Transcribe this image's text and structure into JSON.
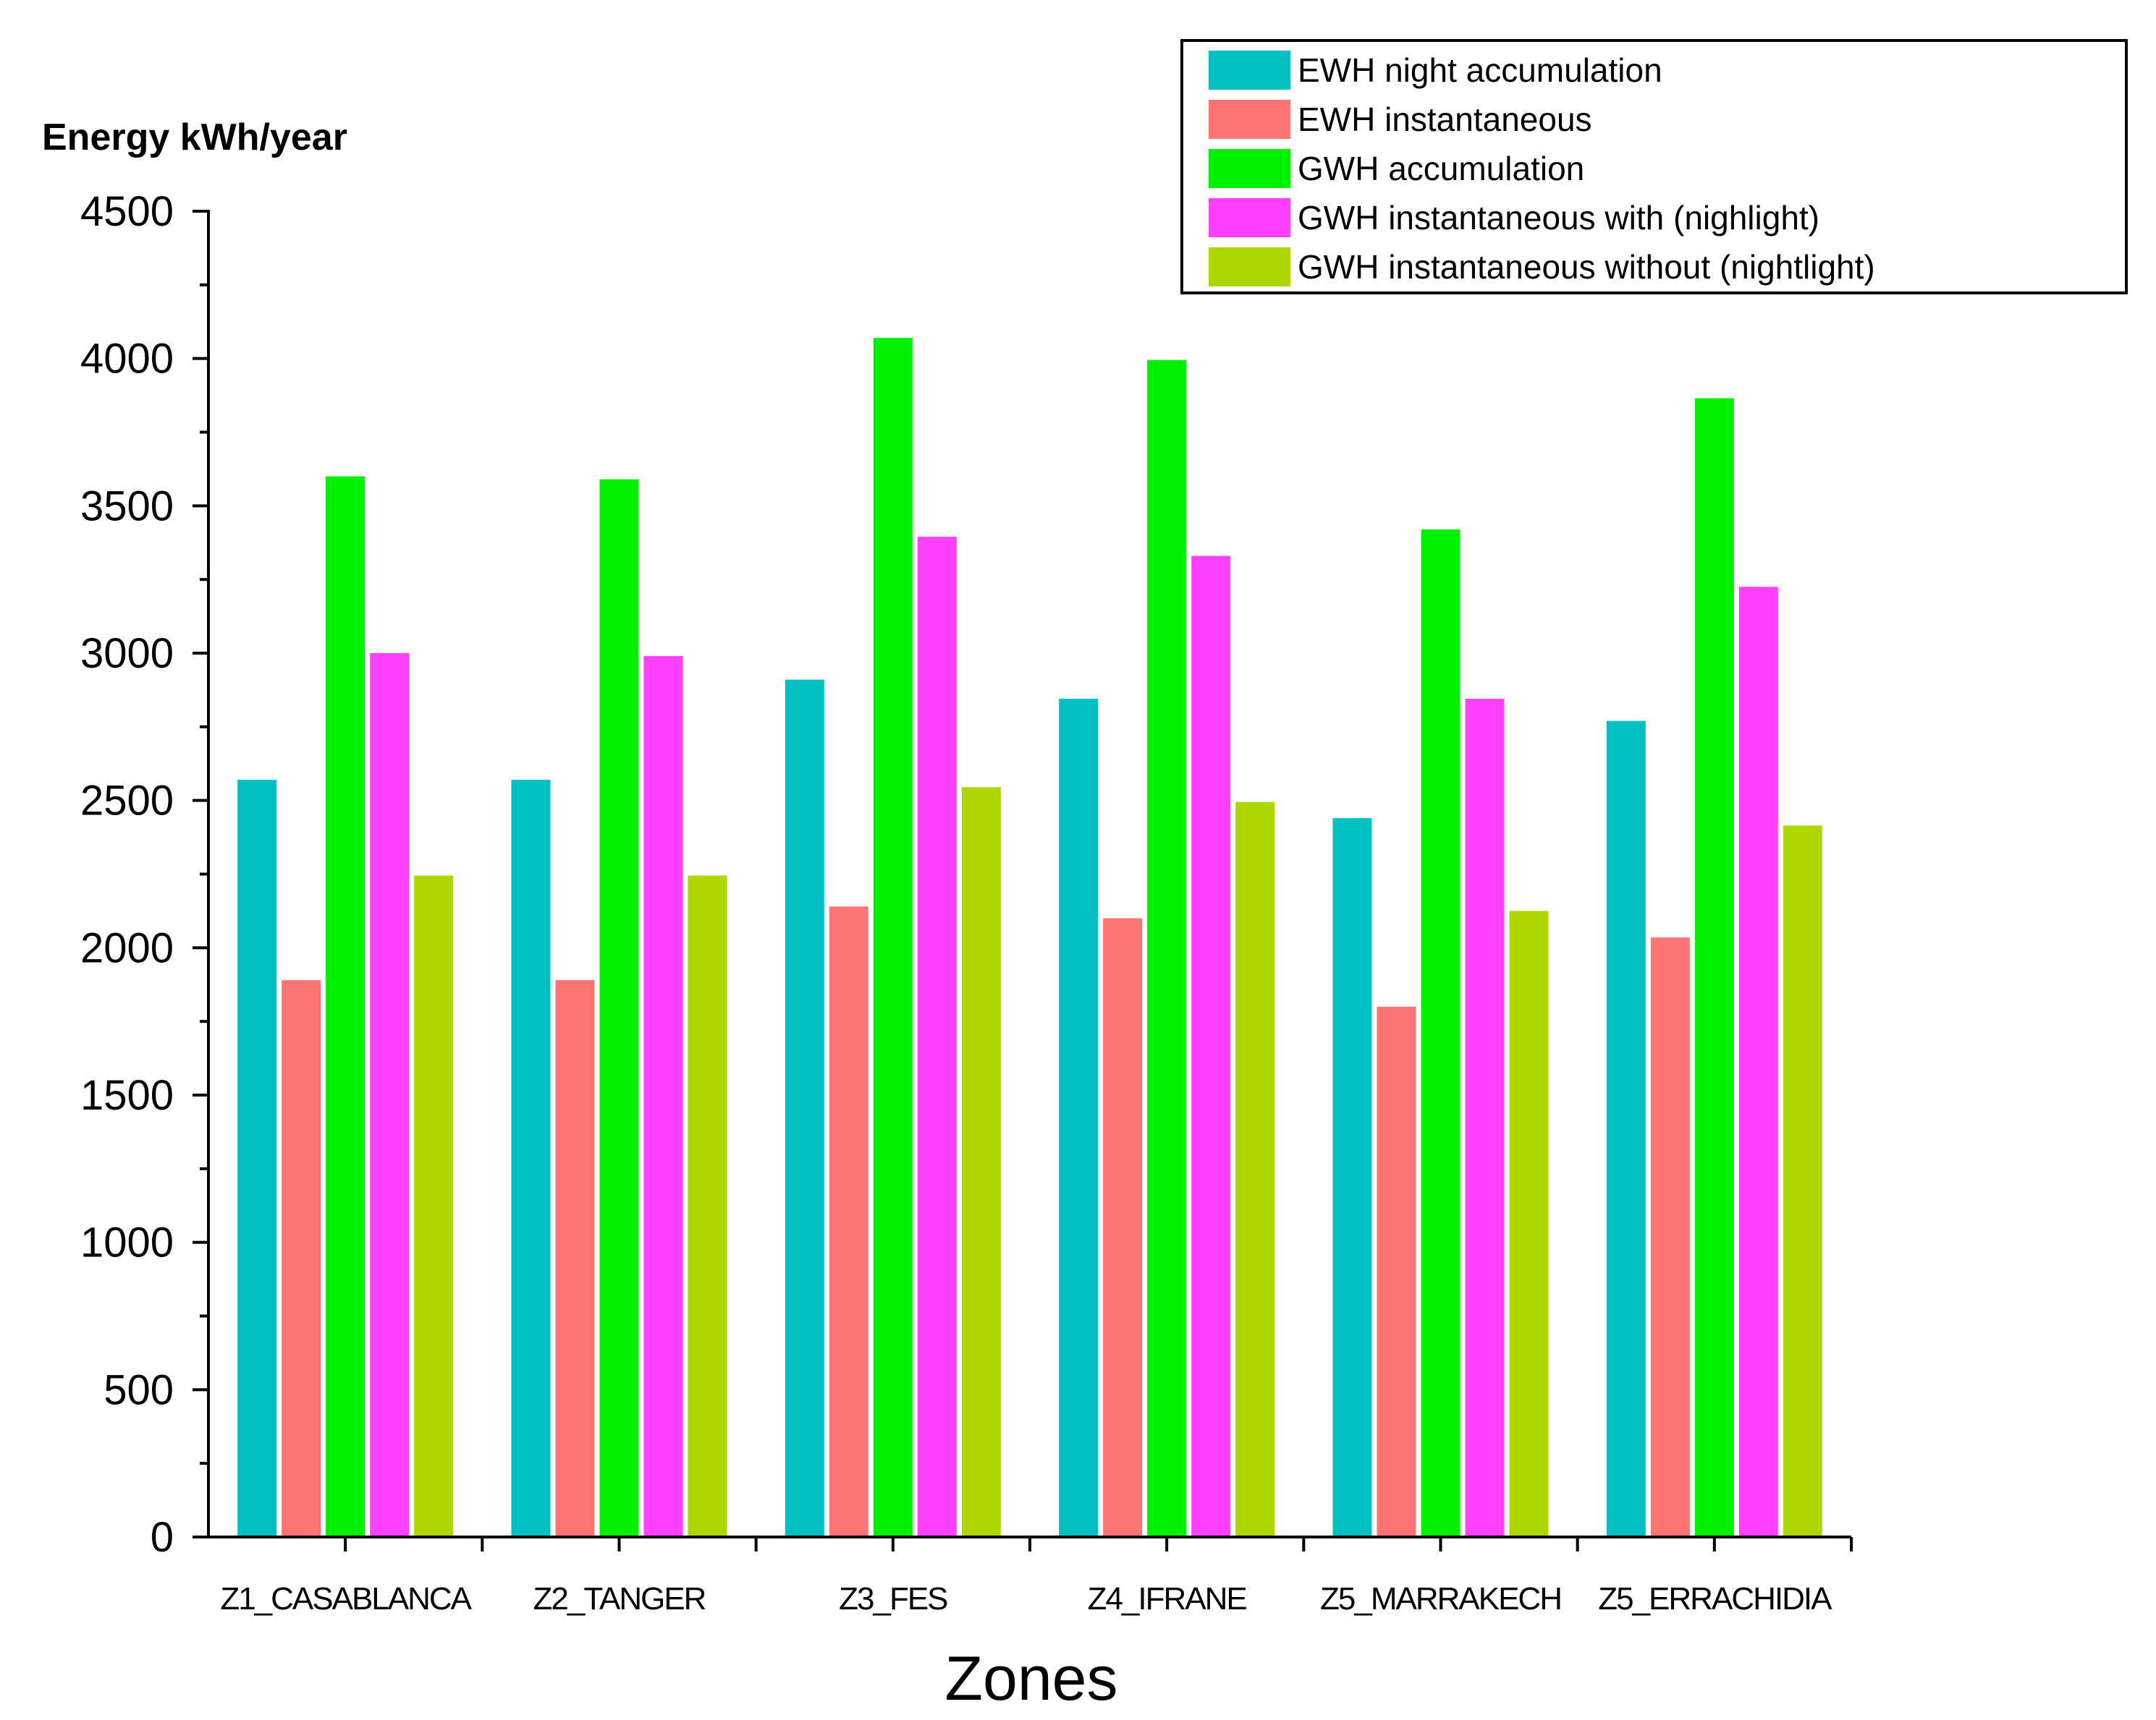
{
  "chart_data": {
    "type": "bar",
    "title": "",
    "ylabel": "Energy kWh/year",
    "xlabel": "Zones",
    "ylim": [
      0,
      4500
    ],
    "yticks": [
      0,
      500,
      1000,
      1500,
      2000,
      2500,
      3000,
      3500,
      4000,
      4500
    ],
    "categories": [
      "Z1_CASABLANCA",
      "Z2_TANGER",
      "Z3_FES",
      "Z4_IFRANE",
      "Z5_MARRAKECH",
      "Z5_ERRACHIDIA"
    ],
    "series": [
      {
        "name": "EWH night accumulation",
        "color": "#00C0C4",
        "values": [
          2570,
          2570,
          2910,
          2845,
          2440,
          2770
        ]
      },
      {
        "name": "EWH instantaneous",
        "color": "#FF7575",
        "values": [
          1890,
          1890,
          2140,
          2100,
          1800,
          2035
        ]
      },
      {
        "name": "GWH accumulation",
        "color": "#00F000",
        "values": [
          3600,
          3590,
          4070,
          3995,
          3420,
          3865
        ]
      },
      {
        "name": "GWH instantaneous with (nighlight)",
        "color": "#FF40FF",
        "values": [
          3000,
          2990,
          3395,
          3330,
          2845,
          3225
        ]
      },
      {
        "name": "GWH instantaneous without (nightlight)",
        "color": "#AED600",
        "values": [
          2245,
          2245,
          2545,
          2495,
          2125,
          2415
        ]
      }
    ],
    "legend_position": "top-right",
    "grid": false
  }
}
